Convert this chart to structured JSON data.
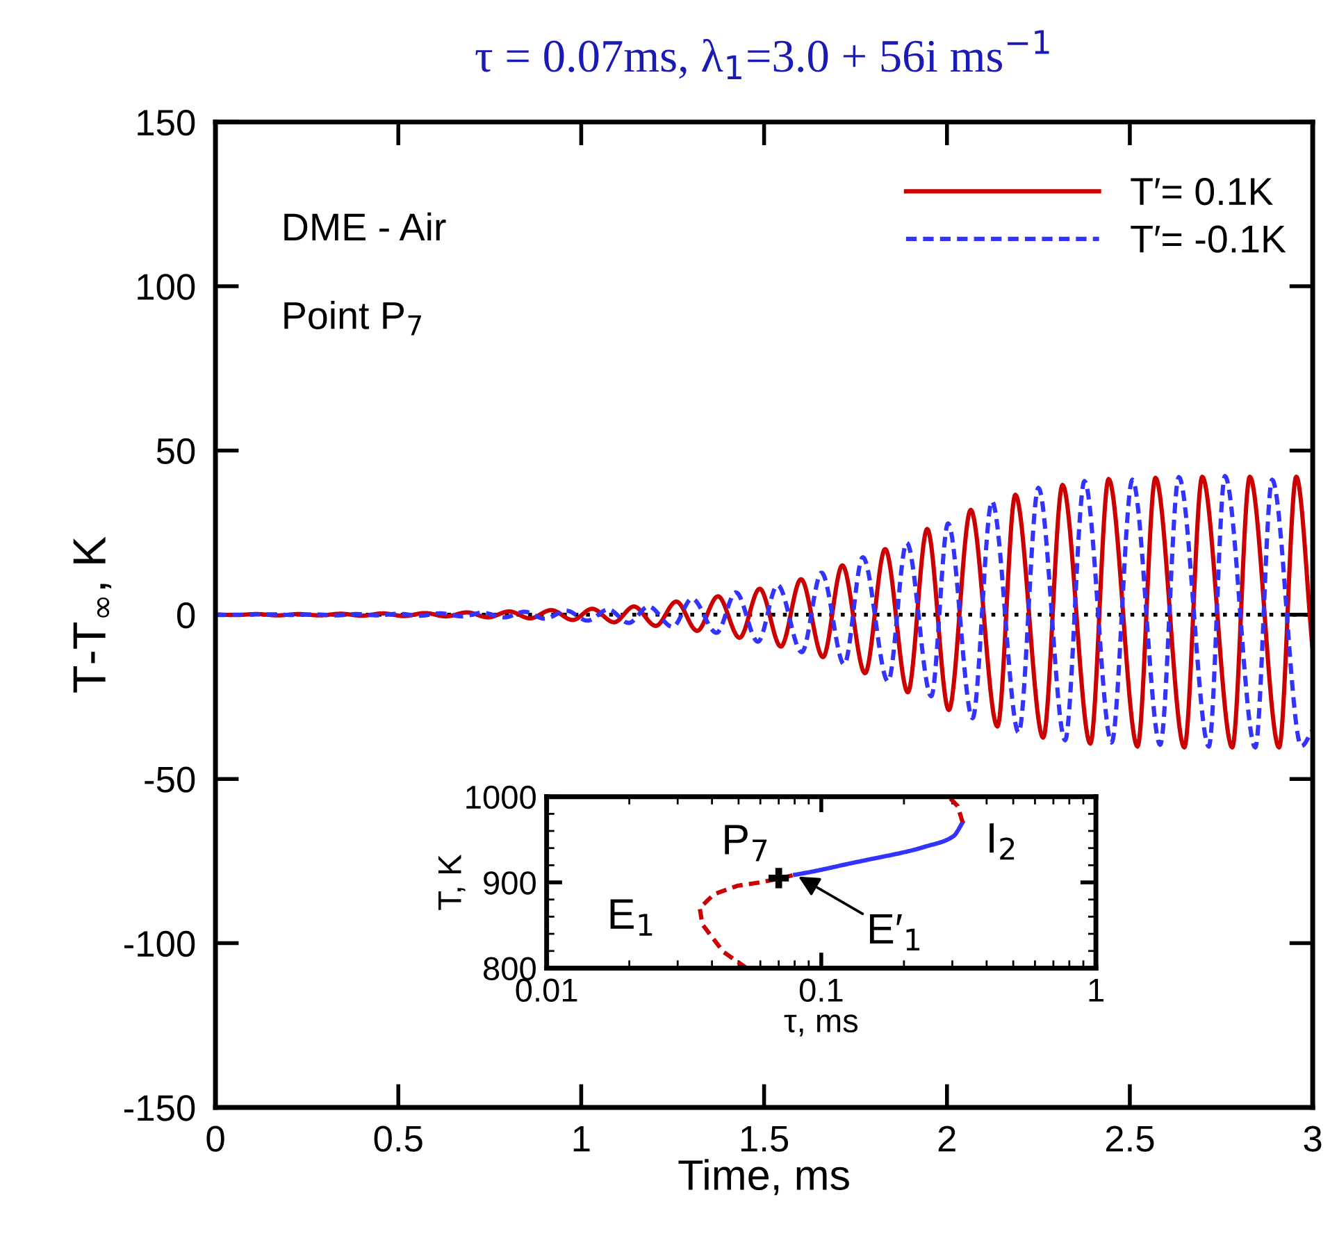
{
  "chart_data": [
    {
      "type": "line",
      "title": "τ = 0.07ms, λ$_{1}$=3.0 + 56i ms$^{−1}$",
      "xlabel": "Time, ms",
      "ylabel": "T-T$_{∞}$, K",
      "xlim": [
        0,
        3
      ],
      "xticks": [
        0,
        0.5,
        1,
        1.5,
        2,
        2.5,
        3
      ],
      "ylim": [
        -150,
        150
      ],
      "yticks": [
        -150,
        -100,
        -50,
        0,
        50,
        100,
        150
      ],
      "grid": false,
      "legend": "top right",
      "marker": "none",
      "annotations": [
        "DME - Air",
        "Point P$_{7}$"
      ],
      "ref_lines": [
        {
          "axis": "y",
          "value": 0,
          "color": "#000000",
          "line_style": "dotted"
        }
      ],
      "series": [
        {
          "name": "T′= 0.1K",
          "color": "#cc0000",
          "line_style": "solid",
          "x": [
            0,
            0.055,
            0.113,
            0.17,
            0.228,
            0.285,
            0.343,
            0.4,
            0.458,
            0.515,
            0.573,
            0.63,
            0.688,
            0.745,
            0.803,
            0.86,
            0.918,
            0.977,
            1.03,
            1.09,
            1.144,
            1.204,
            1.26,
            1.317,
            1.374,
            1.433,
            1.488,
            1.546,
            1.601,
            1.661,
            1.714,
            1.776,
            1.831,
            1.893,
            1.946,
            2.005,
            2.065,
            2.138,
            2.187,
            2.263,
            2.316,
            2.392,
            2.442,
            2.521,
            2.57,
            2.649,
            2.698,
            2.78,
            2.828,
            2.908,
            2.955,
            3.0
          ],
          "values": [
            0.1,
            -0.1,
            0.2,
            -0.2,
            0.2,
            -0.2,
            0.3,
            -0.3,
            0.4,
            -0.4,
            0.5,
            -0.5,
            0.7,
            -0.8,
            1.0,
            -1.1,
            1.4,
            -1.6,
            1.8,
            -2.3,
            2.5,
            -3.4,
            4.0,
            -4.9,
            5.6,
            -7.0,
            7.9,
            -9.7,
            10.8,
            -12.9,
            15.0,
            -17.8,
            20.0,
            -23.6,
            26.1,
            -29.0,
            31.9,
            -34.0,
            36.5,
            -37.4,
            39.5,
            -39.2,
            41.3,
            -40.1,
            41.7,
            -40.4,
            42.0,
            -40.4,
            42.0,
            -40.4,
            42.0,
            -11
          ]
        },
        {
          "name": "T′= -0.1K",
          "color": "#3333ff",
          "line_style": "dashed",
          "x": [
            0,
            0.155,
            0.215,
            0.27,
            0.33,
            0.385,
            0.445,
            0.5,
            0.56,
            0.615,
            0.675,
            0.73,
            0.79,
            0.845,
            0.9,
            0.96,
            1.017,
            1.074,
            1.13,
            1.184,
            1.25,
            1.303,
            1.37,
            1.423,
            1.483,
            1.537,
            1.603,
            1.657,
            1.719,
            1.77,
            1.839,
            1.89,
            1.957,
            2.003,
            2.07,
            2.123,
            2.196,
            2.25,
            2.323,
            2.376,
            2.45,
            2.507,
            2.583,
            2.634,
            2.716,
            2.76,
            2.843,
            2.889,
            2.969,
            3.0
          ],
          "values": [
            -0.1,
            0.1,
            -0.1,
            0.1,
            -0.2,
            0.2,
            -0.2,
            0.3,
            -0.3,
            0.4,
            -0.5,
            0.6,
            -0.8,
            0.9,
            -1.2,
            1.2,
            -1.8,
            1.6,
            -2.5,
            2.5,
            -3.7,
            4.9,
            -5.5,
            6.8,
            -8.2,
            9.0,
            -11.4,
            12.8,
            -15.1,
            17.5,
            -20.3,
            21.9,
            -24.8,
            27.8,
            -31.5,
            34.5,
            -35.9,
            38.6,
            -38.2,
            40.7,
            -38.9,
            41.1,
            -39.6,
            41.9,
            -40.1,
            42.2,
            -40.4,
            41.1,
            -40,
            -35
          ]
        }
      ]
    },
    {
      "type": "line",
      "xlabel": "τ, ms",
      "ylabel": "T, K",
      "log": "x",
      "xlim": [
        0.01,
        1
      ],
      "xticks": [
        0.01,
        0.1,
        1
      ],
      "ylim": [
        800,
        1000
      ],
      "yticks": [
        800,
        900,
        1000
      ],
      "grid": false,
      "legend": false,
      "annotations": [
        {
          "text": "P$_{7}$",
          "x": 0.07,
          "y": 905
        },
        {
          "text": "E$_{1}$",
          "x": 0.0361,
          "y": 870
        },
        {
          "text": "I$_{2}$",
          "x": 0.327,
          "y": 970
        },
        {
          "text": "E′$_{1}$",
          "x": 0.0803,
          "y": 909
        }
      ],
      "series": [
        {
          "color": "#cc0000",
          "line_style": "dashed",
          "x": [
            0.0535,
            0.044,
            0.0369,
            0.0361,
            0.0406,
            0.0494,
            0.06,
            0.0715,
            0.0803
          ],
          "values": [
            800,
            819,
            851,
            870,
            886,
            896,
            900,
            905,
            909
          ]
        },
        {
          "color": "#3333ff",
          "line_style": "solid",
          "x": [
            0.0803,
            0.131,
            0.235,
            0.303,
            0.327
          ],
          "values": [
            909,
            923,
            941,
            954,
            970
          ]
        },
        {
          "color": "#cc0000",
          "line_style": "dashed",
          "x": [
            0.327,
            0.314,
            0.291
          ],
          "values": [
            970,
            989,
            1000
          ]
        },
        {
          "type": "scatter",
          "color": "#000000",
          "marker": "cross",
          "x": [
            0.07
          ],
          "values": [
            905
          ]
        }
      ]
    }
  ]
}
